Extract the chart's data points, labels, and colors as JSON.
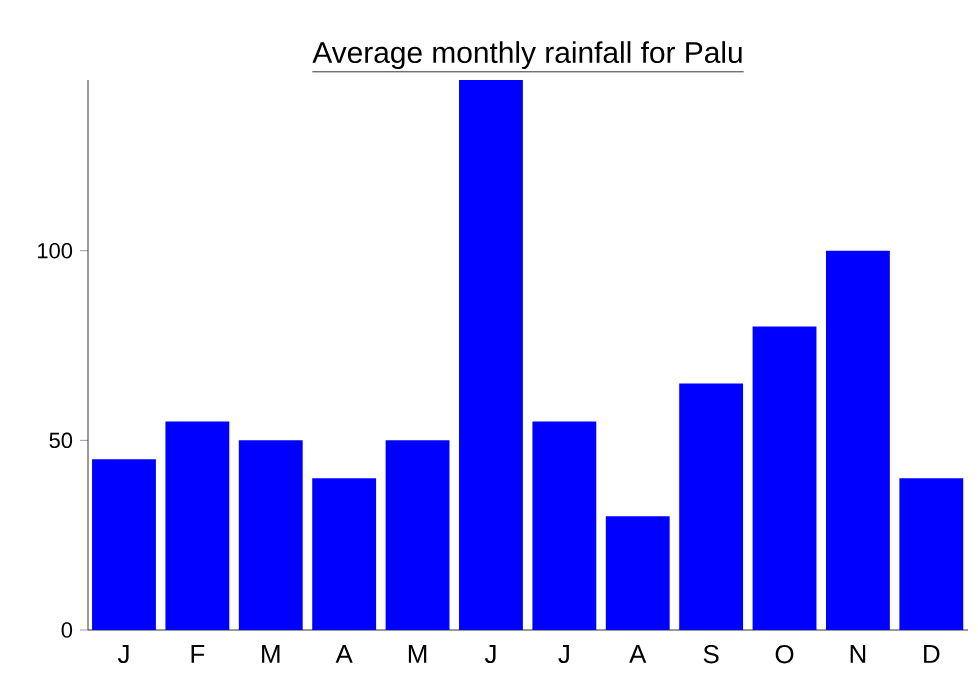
{
  "chart_data": {
    "type": "bar",
    "title": "Average monthly rainfall for Palu",
    "categories": [
      "J",
      "F",
      "M",
      "A",
      "M",
      "J",
      "J",
      "A",
      "S",
      "O",
      "N",
      "D"
    ],
    "values": [
      45,
      55,
      50,
      40,
      50,
      145,
      55,
      30,
      65,
      80,
      100,
      40
    ],
    "color": "#0000ff",
    "ylim": [
      0,
      145
    ],
    "yticks": [
      0,
      50,
      100
    ]
  }
}
